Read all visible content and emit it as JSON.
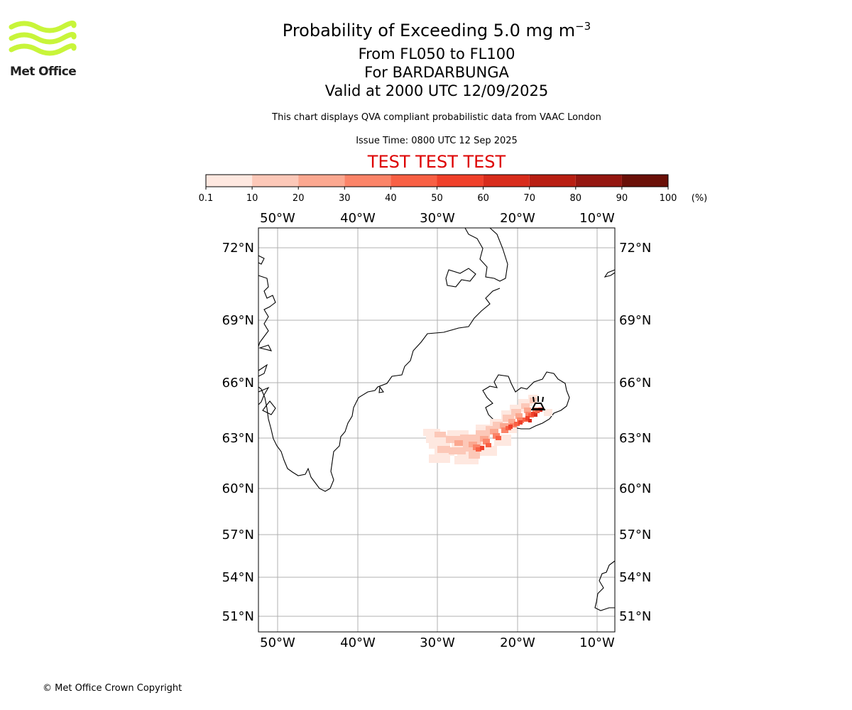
{
  "logo": {
    "text": "Met Office",
    "color": "#c8f53a"
  },
  "header": {
    "title_main": "Probability of Exceeding 5.0 mg m",
    "title_exponent": "−3",
    "level_range": "From FL050 to FL100",
    "volcano": "For BARDARBUNGA",
    "valid_time": "Valid at 2000 UTC 12/09/2025",
    "description": "This chart displays QVA compliant probabilistic data from VAAC London",
    "issue_time": "Issue Time: 0800 UTC 12 Sep 2025",
    "test_banner": "TEST TEST TEST"
  },
  "colorbar": {
    "ticks": [
      "0.1",
      "10",
      "20",
      "30",
      "40",
      "50",
      "60",
      "70",
      "80",
      "90",
      "100"
    ],
    "unit": "(%)",
    "colors": [
      "#fee8e0",
      "#fcc8b8",
      "#fba890",
      "#fb8468",
      "#f86044",
      "#f0402a",
      "#d82c1c",
      "#b81e12",
      "#941610",
      "#6a1008"
    ]
  },
  "map": {
    "lon_labels": [
      "50°W",
      "40°W",
      "30°W",
      "20°W",
      "10°W"
    ],
    "lat_labels": [
      "72°N",
      "69°N",
      "66°N",
      "63°N",
      "60°N",
      "57°N",
      "54°N",
      "51°N"
    ],
    "volcano_icon": "volcano-icon",
    "gridline_color": "#b0b0b0"
  },
  "footer": {
    "copyright": "© Met Office Crown Copyright"
  }
}
